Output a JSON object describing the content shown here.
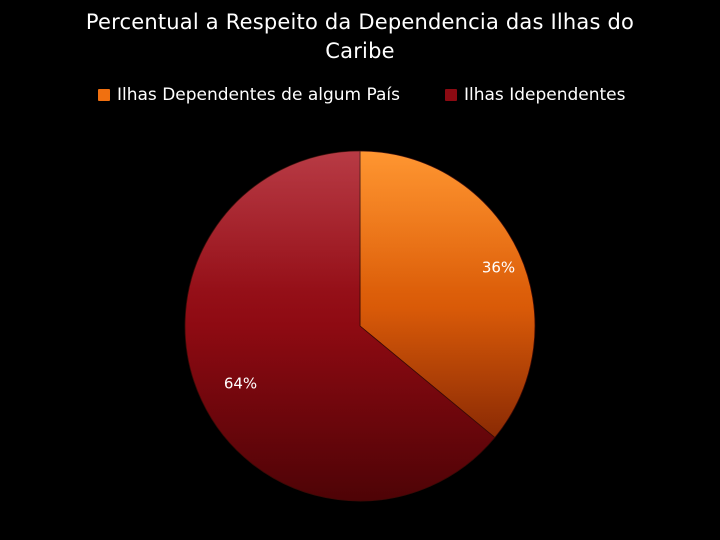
{
  "chart_data": {
    "type": "pie",
    "title": "Percentual a Respeito da Dependencia das Ilhas do Caribe",
    "legend_position": "top",
    "slices": [
      {
        "name": "Ilhas Dependentes de algum País",
        "value": 36,
        "label": "36%",
        "color": "#F07010"
      },
      {
        "name": "Ilhas Idependentes",
        "value": 64,
        "label": "64%",
        "color": "#8C0A12"
      }
    ]
  }
}
